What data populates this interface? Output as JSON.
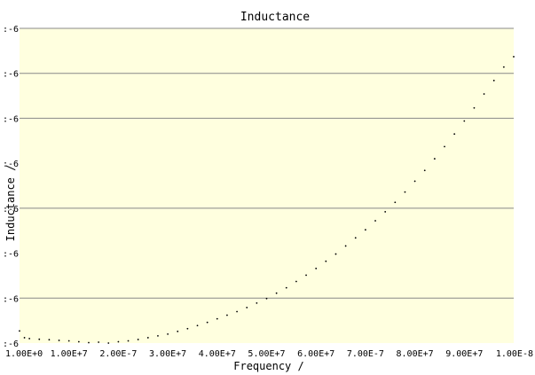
{
  "chart_data": {
    "type": "scatter",
    "title": "Inductance",
    "xlabel": "Frequency /",
    "ylabel": "Inductance /",
    "xlim": [
      0,
      10000000
    ],
    "ylim": [
      0,
      7
    ],
    "x_tick_labels": [
      "1.00E+0",
      "1.00E+7",
      "2.00E-7",
      "3.00E+7",
      "4.00E+7",
      "5.00E+7",
      "6.00E+7",
      "7.00E-7",
      "8.00E+7",
      "9.00E+7",
      "1.00E-8"
    ],
    "y_tick_labels": [
      ":-6",
      ":-6",
      ":-6",
      ":-6",
      ":-6",
      ":-6",
      ":-6",
      ":-6"
    ],
    "y_tick_values": [
      0,
      1,
      2,
      3,
      4,
      5,
      6,
      7
    ],
    "gridlines_y": [
      1,
      3,
      5,
      6,
      7
    ],
    "plot_background": "#ffffdf",
    "grid_color": "#888888",
    "point_color": "#000000",
    "x": [
      0,
      100000,
      200000,
      400000,
      600000,
      800000,
      1000000,
      1200000,
      1400000,
      1600000,
      1800000,
      2000000,
      2200000,
      2400000,
      2600000,
      2800000,
      3000000,
      3200000,
      3400000,
      3600000,
      3800000,
      4000000,
      4200000,
      4400000,
      4600000,
      4800000,
      5000000,
      5200000,
      5400000,
      5600000,
      5800000,
      6000000,
      6200000,
      6400000,
      6600000,
      6800000,
      7000000,
      7200000,
      7400000,
      7600000,
      7800000,
      8000000,
      8200000,
      8400000,
      8600000,
      8800000,
      9000000,
      9200000,
      9400000,
      9600000,
      9800000,
      10000000
    ],
    "y": [
      0.27,
      0.12,
      0.1,
      0.085,
      0.075,
      0.06,
      0.05,
      0.03,
      0.01,
      0.02,
      0.0,
      0.03,
      0.05,
      0.08,
      0.12,
      0.16,
      0.2,
      0.26,
      0.32,
      0.39,
      0.46,
      0.54,
      0.62,
      0.7,
      0.79,
      0.89,
      0.99,
      1.11,
      1.23,
      1.37,
      1.51,
      1.66,
      1.82,
      1.98,
      2.16,
      2.34,
      2.52,
      2.72,
      2.92,
      3.13,
      3.36,
      3.6,
      3.84,
      4.1,
      4.37,
      4.65,
      4.94,
      5.23,
      5.54,
      5.84,
      6.14,
      6.37
    ]
  }
}
